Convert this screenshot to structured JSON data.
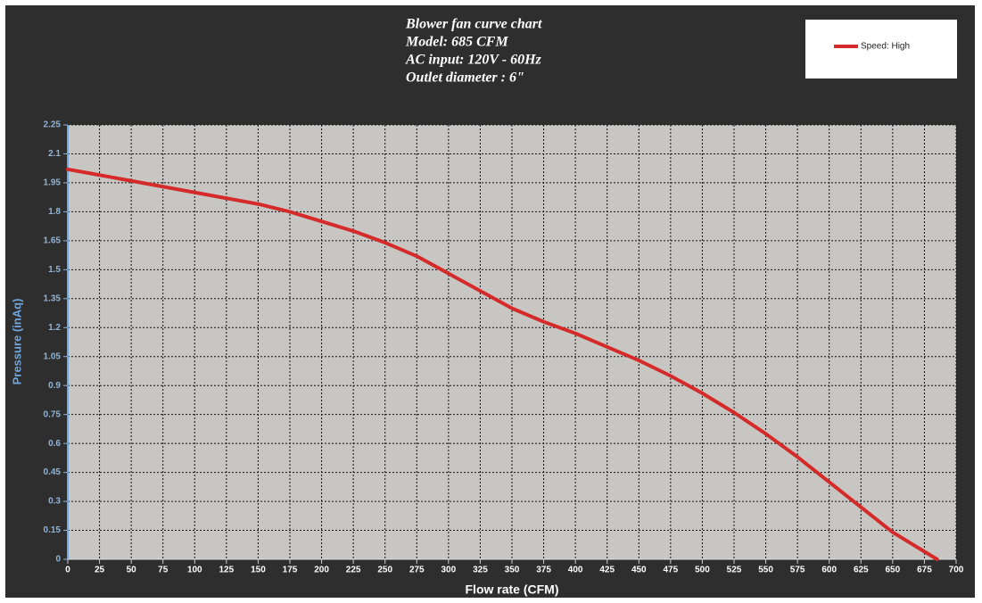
{
  "chart_data": {
    "type": "line",
    "title": "Blower fan curve chart",
    "subtitle": [
      "Model: 685 CFM",
      "AC input: 120V - 60Hz",
      "Outlet diameter : 6\""
    ],
    "x_label": "Flow rate (CFM)",
    "y_label": "Pressure (inAq)",
    "x": [
      0,
      25,
      50,
      75,
      100,
      125,
      150,
      175,
      200,
      225,
      250,
      275,
      300,
      325,
      350,
      375,
      400,
      425,
      450,
      475,
      500,
      525,
      550,
      575,
      600,
      625,
      650,
      685
    ],
    "series": [
      {
        "name": "Speed: High",
        "color": "#d42a2a",
        "values": [
          2.02,
          1.99,
          1.96,
          1.93,
          1.9,
          1.87,
          1.84,
          1.8,
          1.75,
          1.7,
          1.64,
          1.57,
          1.48,
          1.39,
          1.3,
          1.23,
          1.17,
          1.1,
          1.03,
          0.95,
          0.86,
          0.76,
          0.65,
          0.53,
          0.4,
          0.27,
          0.14,
          0
        ]
      }
    ],
    "xlim": [
      0,
      700
    ],
    "xticks": [
      0,
      25,
      50,
      75,
      100,
      125,
      150,
      175,
      200,
      225,
      250,
      275,
      300,
      325,
      350,
      375,
      400,
      425,
      450,
      475,
      500,
      525,
      550,
      575,
      600,
      625,
      650,
      675,
      700
    ],
    "ylim": [
      0,
      2.25
    ],
    "yticks": [
      0,
      0.15,
      0.3,
      0.45,
      0.6,
      0.75,
      0.9,
      1.05,
      1.2,
      1.35,
      1.5,
      1.65,
      1.8,
      1.95,
      2.1,
      2.25
    ],
    "grid": true,
    "legend": "top-right"
  }
}
